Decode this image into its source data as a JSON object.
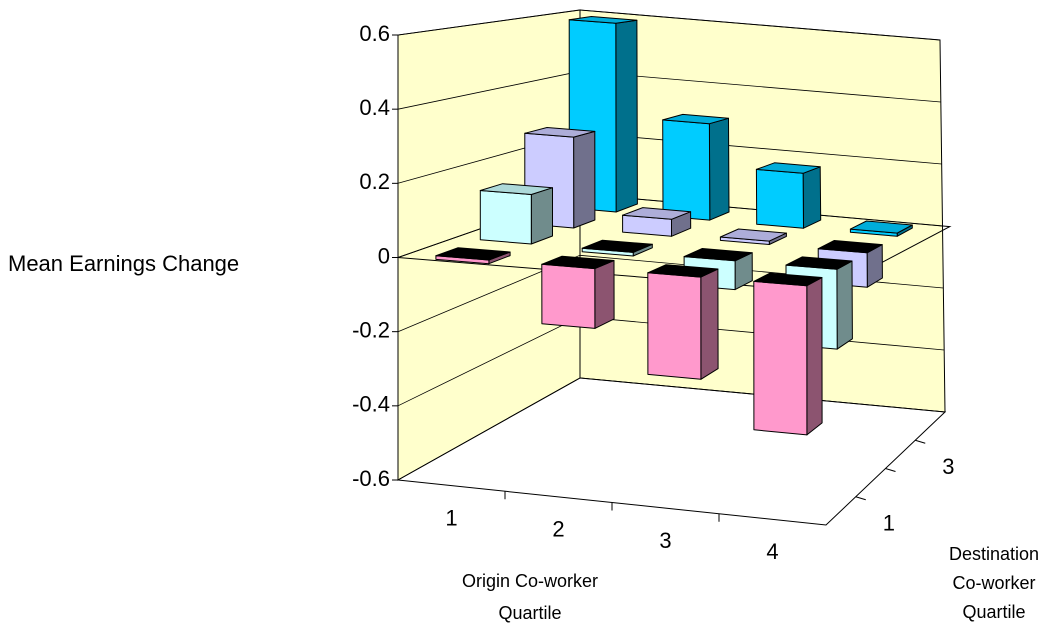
{
  "chart_data": {
    "type": "bar3d",
    "y_label": "Mean Earnings  Change",
    "x_label": [
      "Origin Co-worker",
      "Quartile"
    ],
    "depth_label": [
      "Destination",
      "Co-worker",
      "Quartile"
    ],
    "categories": [
      "1",
      "2",
      "3",
      "4"
    ],
    "depth_categories": [
      "1",
      null,
      "3",
      null
    ],
    "series": [
      {
        "color": "#ff99cc",
        "values": [
          -0.01,
          -0.16,
          -0.27,
          -0.39
        ]
      },
      {
        "color": "#ccffff",
        "values": [
          0.14,
          -0.01,
          -0.08,
          -0.22
        ]
      },
      {
        "color": "#ccccff",
        "values": [
          0.27,
          0.05,
          0.01,
          -0.1
        ]
      },
      {
        "color": "#00ccff",
        "values": [
          0.59,
          0.3,
          0.17,
          0.01
        ]
      }
    ],
    "ylim": [
      -0.6,
      0.6
    ],
    "yticks": [
      -0.6,
      -0.4,
      -0.2,
      0,
      0.2,
      0.4,
      0.6
    ],
    "grid": true,
    "wall_color": "#ffffcc"
  }
}
